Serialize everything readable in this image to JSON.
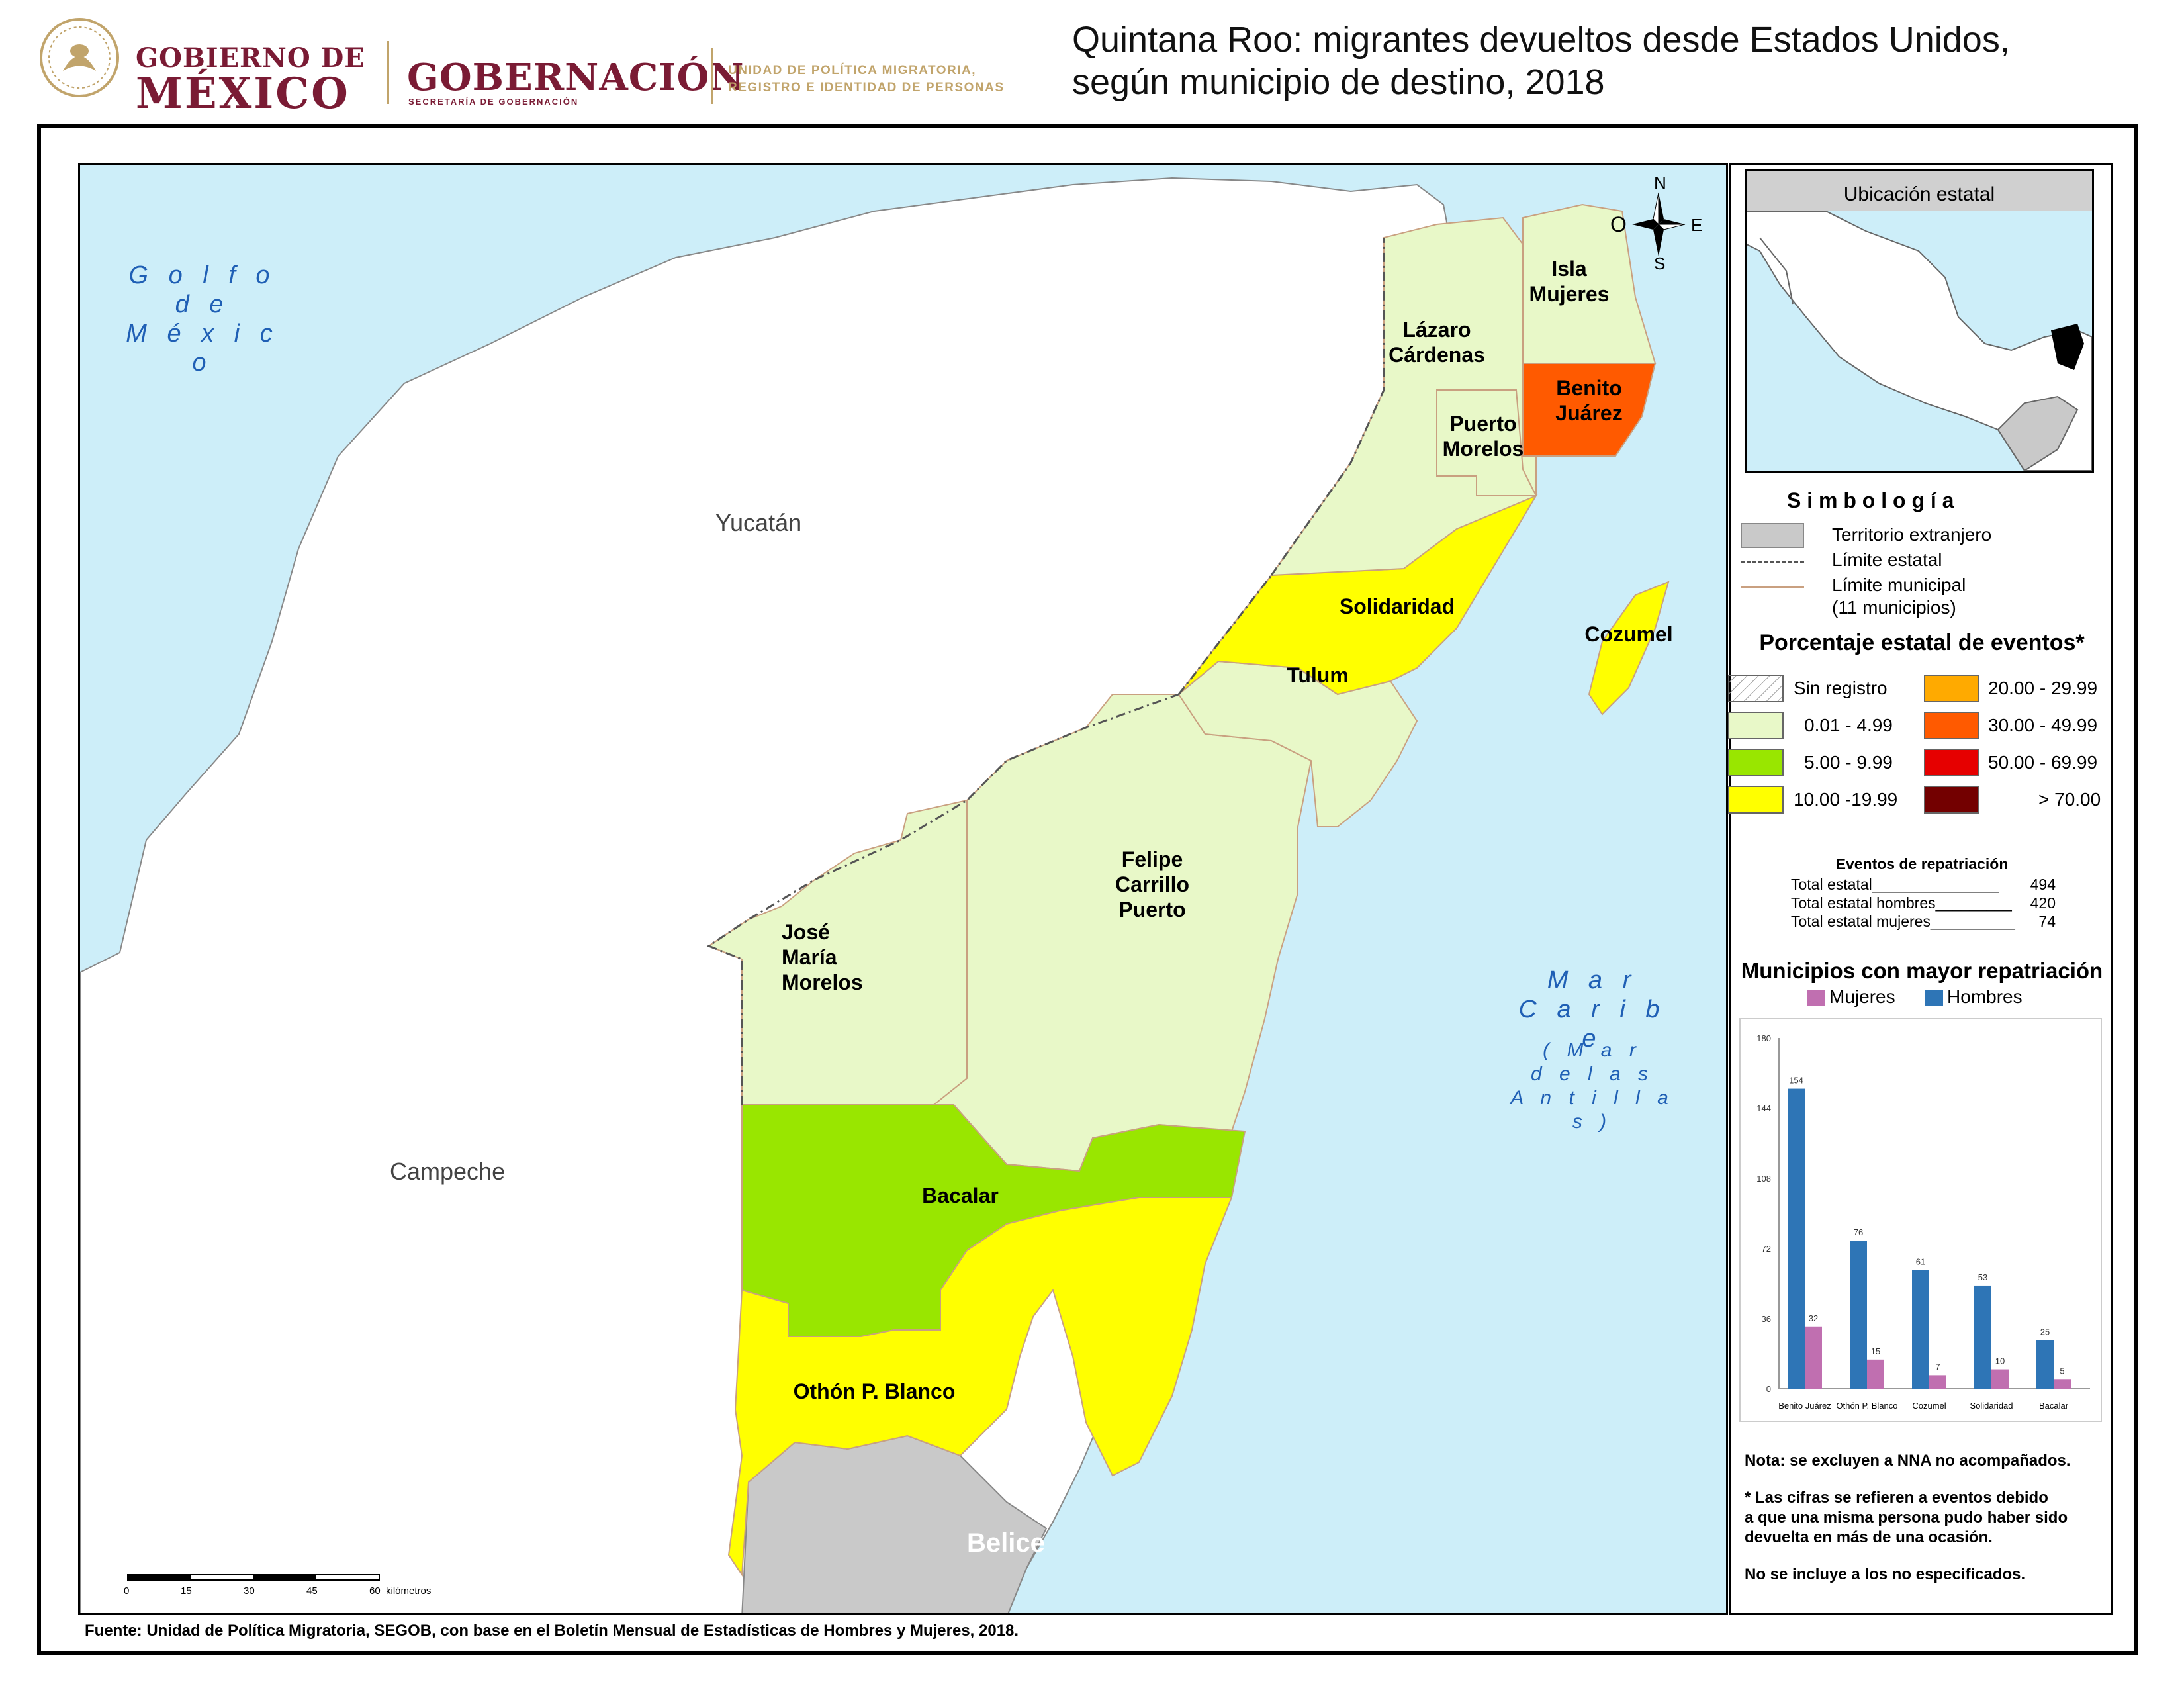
{
  "header": {
    "logo_gobierno_line1": "GOBIERNO DE",
    "logo_gobierno_line2": "MÉXICO",
    "logo_gobernacion": "GOBERNACIÓN",
    "logo_gobernacion_sub": "SECRETARÍA DE GOBERNACIÓN",
    "logo_unit": "UNIDAD DE POLÍTICA MIGRATORIA, REGISTRO E IDENTIDAD DE PERSONAS",
    "title_line1": "Quintana Roo: migrantes devueltos desde Estados Unidos,",
    "title_line2": "según municipio de destino, 2018"
  },
  "map": {
    "neighbors": [
      "Yucatán",
      "Campeche",
      "Belice"
    ],
    "seas": {
      "gulf": [
        "G o l f o",
        "d e",
        "M é x i c o"
      ],
      "caribbean": [
        "M a r",
        "C a r i b e"
      ],
      "antillas": [
        "( M a r",
        "d e   l a s",
        "A n t i l l a s )"
      ]
    },
    "municipalities": [
      {
        "name": "Isla Mujeres",
        "lines": [
          "Isla",
          "Mujeres"
        ],
        "class": "0.01 - 4.99",
        "color": "#e8f8c8"
      },
      {
        "name": "Lázaro Cárdenas",
        "lines": [
          "Lázaro",
          "Cárdenas"
        ],
        "class": "0.01 - 4.99",
        "color": "#e8f8c8"
      },
      {
        "name": "Benito Juárez",
        "lines": [
          "Benito",
          "Juárez"
        ],
        "class": "30.00 - 49.99",
        "color": "#ff5a00"
      },
      {
        "name": "Puerto Morelos",
        "lines": [
          "Puerto",
          "Morelos"
        ],
        "class": "0.01 - 4.99",
        "color": "#e8f8c8"
      },
      {
        "name": "Solidaridad",
        "lines": [
          "Solidaridad"
        ],
        "class": "10.00 -19.99",
        "color": "#ffff00"
      },
      {
        "name": "Cozumel",
        "lines": [
          "Cozumel"
        ],
        "class": "10.00 -19.99",
        "color": "#ffff00"
      },
      {
        "name": "Tulum",
        "lines": [
          "Tulum"
        ],
        "class": "0.01 - 4.99",
        "color": "#e8f8c8"
      },
      {
        "name": "Felipe Carrillo Puerto",
        "lines": [
          "Felipe",
          "Carrillo",
          "Puerto"
        ],
        "class": "0.01 - 4.99",
        "color": "#e8f8c8"
      },
      {
        "name": "José María Morelos",
        "lines": [
          "José",
          "María",
          "Morelos"
        ],
        "class": "0.01 - 4.99",
        "color": "#e8f8c8"
      },
      {
        "name": "Bacalar",
        "lines": [
          "Bacalar"
        ],
        "class": "5.00 - 9.99",
        "color": "#99e600"
      },
      {
        "name": "Othón P. Blanco",
        "lines": [
          "Othón P. Blanco"
        ],
        "class": "10.00 -19.99",
        "color": "#ffff00"
      }
    ],
    "compass": {
      "n": "N",
      "s": "S",
      "e": "E",
      "w": "O"
    },
    "scale": {
      "ticks": [
        "0",
        "15",
        "30",
        "45",
        "60"
      ],
      "unit": "kilómetros"
    }
  },
  "inset": {
    "title": "Ubicación estatal"
  },
  "legend": {
    "title": "S i m b o l o g í a",
    "items": [
      {
        "label": "Territorio extranjero"
      },
      {
        "label": "Límite estatal"
      },
      {
        "label": "Límite municipal"
      },
      {
        "label": "(11 municipios)"
      }
    ],
    "classes_title": "Porcentaje estatal de eventos*",
    "classes": [
      {
        "label": "Sin registro",
        "color": "#ffffff"
      },
      {
        "label": "0.01  - 4.99",
        "color": "#e8f8c8"
      },
      {
        "label": "5.00  - 9.99",
        "color": "#99e600"
      },
      {
        "label": "10.00 -19.99",
        "color": "#ffff00"
      },
      {
        "label": "20.00 - 29.99",
        "color": "#ffaa00"
      },
      {
        "label": "30.00 - 49.99",
        "color": "#ff5a00"
      },
      {
        "label": "50.00 - 69.99",
        "color": "#e60000"
      },
      {
        "label": "> 70.00",
        "color": "#730000"
      }
    ]
  },
  "events": {
    "title": "Eventos de repatriación",
    "rows": [
      {
        "label": "Total estatal_______________",
        "value": "494"
      },
      {
        "label": "Total estatal hombres_________",
        "value": "420"
      },
      {
        "label": "Total estatal mujeres__________",
        "value": "74"
      }
    ]
  },
  "chart_data": {
    "type": "bar",
    "title": "Municipios con mayor repatriación",
    "categories": [
      "Benito Juárez",
      "Othón P. Blanco",
      "Cozumel",
      "Solidaridad",
      "Bacalar"
    ],
    "series": [
      {
        "name": "Hombres",
        "color": "#2e75b6",
        "values": [
          154,
          76,
          61,
          53,
          25
        ]
      },
      {
        "name": "Mujeres",
        "color": "#c06fb0",
        "values": [
          32,
          15,
          7,
          10,
          5
        ]
      }
    ],
    "ylim": [
      0,
      180
    ],
    "yticks": [
      "0",
      "36",
      "72",
      "108",
      "144",
      "180"
    ],
    "legend": "top-left",
    "grid": false
  },
  "notes": [
    "Nota: se excluyen a NNA no acompañados.",
    "* Las cifras se refieren a eventos debido",
    "a que una misma persona pudo haber sido",
    "devuelta en más de una ocasión.",
    "No se incluye a los no especificados."
  ],
  "source": "Fuente: Unidad de Política Migratoria, SEGOB, con base en el Boletín Mensual de Estadísticas de Hombres y Mujeres, 2018."
}
